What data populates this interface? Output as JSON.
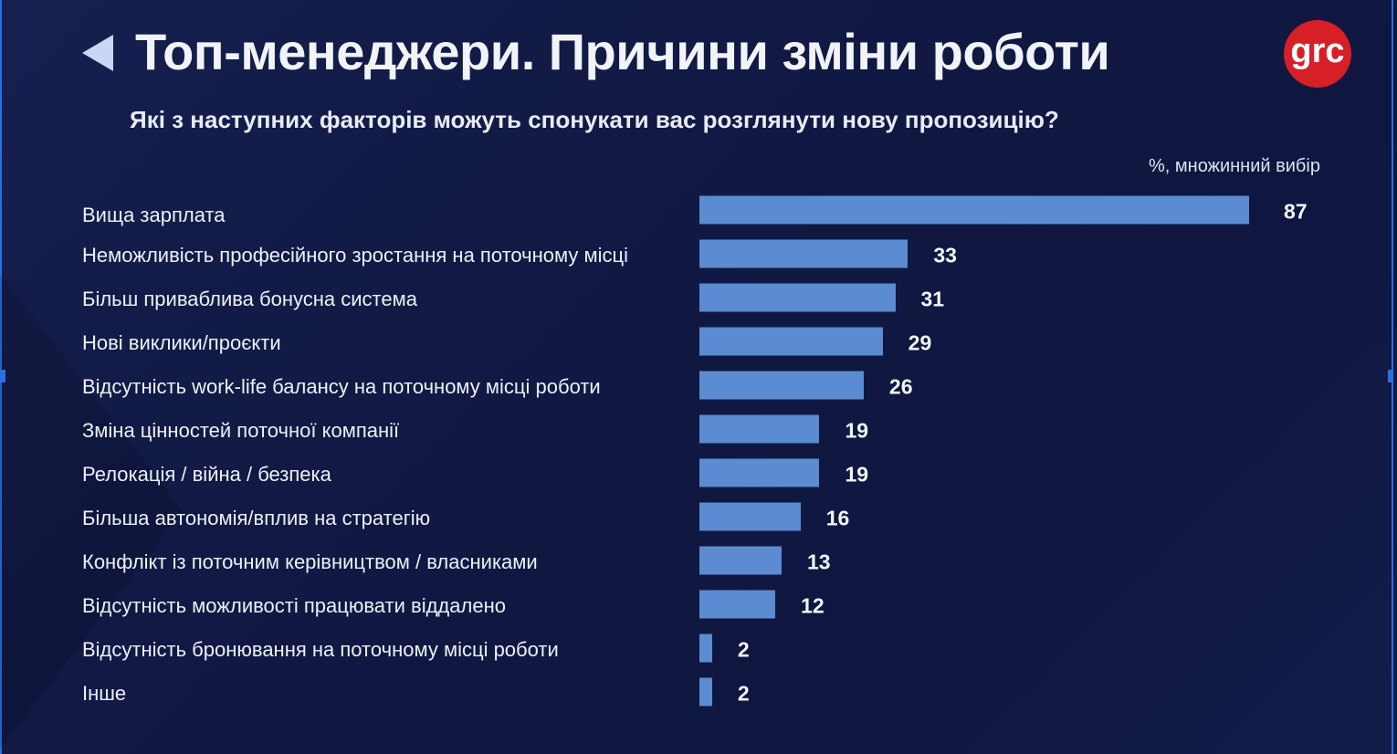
{
  "header": {
    "title": "Топ-менеджери. Причини зміни роботи",
    "subtitle": "Які з наступних факторів можуть спонукати вас розглянути нову пропозицію?",
    "logo_text": "grc"
  },
  "colors": {
    "bar": "#5b8bd0",
    "background": "#111944",
    "logo": "#d71f26"
  },
  "chart_data": {
    "type": "bar",
    "orientation": "horizontal",
    "note": "%, множинний вибір",
    "categories": [
      "Вища зарплата",
      "Неможливість професійного зростання на поточному місці",
      "Більш приваблива бонусна система",
      "Нові виклики/проєкти",
      "Відсутність work-life балансу на поточному місці роботи",
      "Зміна цінностей поточної компанії",
      "Релокація / війна / безпека",
      "Більша автономія/вплив на стратегію",
      "Конфлікт із поточним керівництвом / власниками",
      "Відсутність можливості працювати віддалено",
      "Відсутність бронювання на поточному місці роботи",
      "Інше"
    ],
    "values": [
      87,
      33,
      31,
      29,
      26,
      19,
      19,
      16,
      13,
      12,
      2,
      2
    ]
  }
}
